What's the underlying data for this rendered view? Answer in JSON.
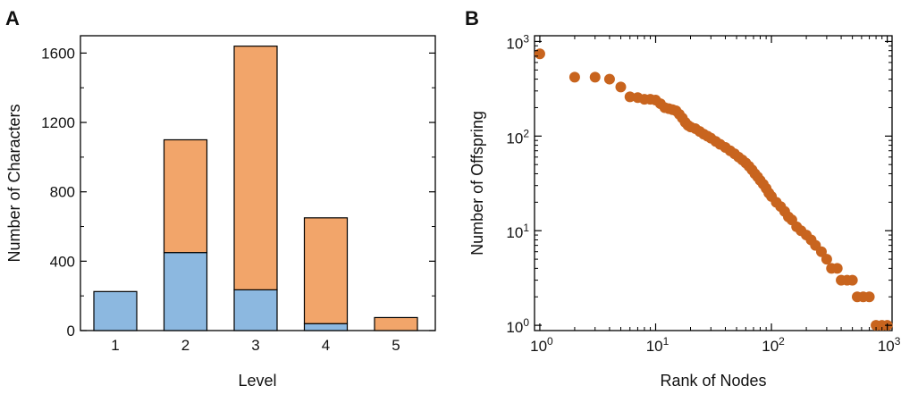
{
  "chart_data": [
    {
      "panel": "A",
      "type": "bar",
      "stacked": true,
      "categories": [
        "1",
        "2",
        "3",
        "4",
        "5"
      ],
      "series": [
        {
          "color": "#8cb8e0",
          "values": [
            225,
            450,
            235,
            40,
            0
          ]
        },
        {
          "color": "#f2a56a",
          "values": [
            0,
            650,
            1405,
            610,
            75
          ]
        }
      ],
      "xlabel": "Level",
      "ylabel": "Number of Characters",
      "ylim": [
        0,
        1700
      ],
      "yticks": [
        0,
        400,
        800,
        1200,
        1600
      ],
      "grid": false
    },
    {
      "panel": "B",
      "type": "scatter",
      "xscale": "log",
      "yscale": "log",
      "xlabel": "Rank of Nodes",
      "ylabel": "Number of Offspring",
      "xlim": [
        0.9,
        1100
      ],
      "ylim": [
        0.88,
        1150
      ],
      "xticks": [
        "10^0",
        "10^1",
        "10^2",
        "10^3"
      ],
      "yticks": [
        "10^0",
        "10^1",
        "10^2",
        "10^3"
      ],
      "color": "#c8641e",
      "grid": false,
      "points": [
        [
          1,
          740
        ],
        [
          2,
          420
        ],
        [
          3,
          420
        ],
        [
          4,
          400
        ],
        [
          5,
          330
        ],
        [
          6,
          260
        ],
        [
          7,
          255
        ],
        [
          8,
          245
        ],
        [
          9,
          245
        ],
        [
          10,
          240
        ],
        [
          11,
          220
        ],
        [
          12,
          200
        ],
        [
          13,
          195
        ],
        [
          14,
          190
        ],
        [
          15,
          185
        ],
        [
          16,
          170
        ],
        [
          17,
          155
        ],
        [
          18,
          140
        ],
        [
          19,
          130
        ],
        [
          20,
          125
        ],
        [
          22,
          120
        ],
        [
          24,
          112
        ],
        [
          26,
          105
        ],
        [
          28,
          100
        ],
        [
          30,
          95
        ],
        [
          33,
          88
        ],
        [
          36,
          82
        ],
        [
          40,
          76
        ],
        [
          44,
          70
        ],
        [
          48,
          65
        ],
        [
          52,
          60
        ],
        [
          56,
          56
        ],
        [
          60,
          52
        ],
        [
          64,
          48
        ],
        [
          68,
          44
        ],
        [
          72,
          40
        ],
        [
          76,
          37
        ],
        [
          80,
          34
        ],
        [
          85,
          31
        ],
        [
          90,
          28
        ],
        [
          95,
          25
        ],
        [
          100,
          23
        ],
        [
          110,
          20
        ],
        [
          120,
          18
        ],
        [
          130,
          16
        ],
        [
          140,
          14
        ],
        [
          150,
          13
        ],
        [
          165,
          11
        ],
        [
          180,
          10
        ],
        [
          200,
          9
        ],
        [
          220,
          8
        ],
        [
          240,
          7
        ],
        [
          270,
          6
        ],
        [
          300,
          5
        ],
        [
          330,
          4
        ],
        [
          370,
          4
        ],
        [
          400,
          3
        ],
        [
          450,
          3
        ],
        [
          500,
          3
        ],
        [
          550,
          2
        ],
        [
          620,
          2
        ],
        [
          700,
          2
        ],
        [
          800,
          1
        ],
        [
          900,
          1
        ],
        [
          1000,
          1
        ]
      ]
    }
  ]
}
